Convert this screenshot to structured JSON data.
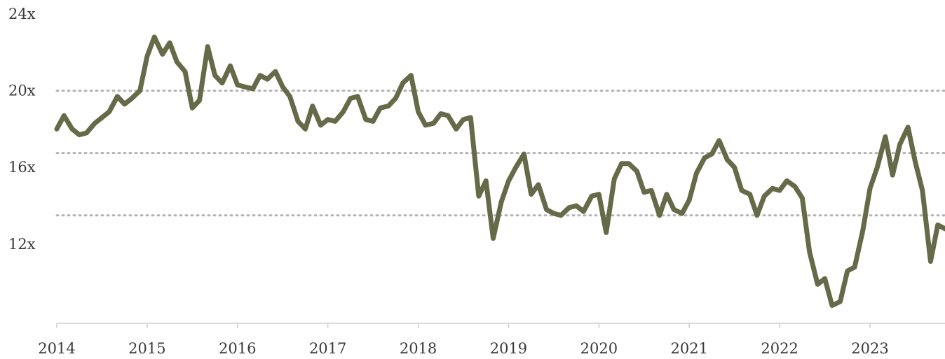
{
  "chart_data": {
    "type": "line",
    "title": "",
    "xlabel": "",
    "ylabel": "",
    "line_color": "#676a48",
    "grid": "dotted horizontal at 13.5x, 16.75x, 20x",
    "xlim": [
      2014.0,
      2023.83
    ],
    "ylim": [
      8.2,
      24.0
    ],
    "y_ticks": [
      {
        "value": 24,
        "label": "24x"
      },
      {
        "value": 20,
        "label": "20x"
      },
      {
        "value": 16,
        "label": "16x"
      },
      {
        "value": 12,
        "label": "12x"
      }
    ],
    "gridlines": [
      20,
      16.75,
      13.5
    ],
    "x_ticks": [
      {
        "value": 2014,
        "label": "2014"
      },
      {
        "value": 2015,
        "label": "2015"
      },
      {
        "value": 2016,
        "label": "2016"
      },
      {
        "value": 2017,
        "label": "2017"
      },
      {
        "value": 2018,
        "label": "2018"
      },
      {
        "value": 2019,
        "label": "2019"
      },
      {
        "value": 2020,
        "label": "2020"
      },
      {
        "value": 2021,
        "label": "2021"
      },
      {
        "value": 2022,
        "label": "2022"
      },
      {
        "value": 2023,
        "label": "2023"
      }
    ],
    "series": [
      {
        "x": [
          2014.0,
          2014.08,
          2014.17,
          2014.25,
          2014.33,
          2014.42,
          2014.5,
          2014.58,
          2014.67,
          2014.75,
          2014.83,
          2014.92,
          2015.0,
          2015.08,
          2015.17,
          2015.25,
          2015.33,
          2015.42,
          2015.5,
          2015.58,
          2015.67,
          2015.75,
          2015.83,
          2015.92,
          2016.0,
          2016.08,
          2016.17,
          2016.25,
          2016.33,
          2016.42,
          2016.5,
          2016.58,
          2016.67,
          2016.75,
          2016.83,
          2016.92,
          2017.0,
          2017.08,
          2017.17,
          2017.25,
          2017.33,
          2017.42,
          2017.5,
          2017.58,
          2017.67,
          2017.75,
          2017.83,
          2017.92,
          2018.0,
          2018.08,
          2018.17,
          2018.25,
          2018.33,
          2018.42,
          2018.5,
          2018.58,
          2018.67,
          2018.75,
          2018.83,
          2018.92,
          2019.0,
          2019.08,
          2019.17,
          2019.25,
          2019.33,
          2019.42,
          2019.5,
          2019.58,
          2019.67,
          2019.75,
          2019.83,
          2019.92,
          2020.0,
          2020.08,
          2020.17,
          2020.25,
          2020.33,
          2020.42,
          2020.5,
          2020.58,
          2020.67,
          2020.75,
          2020.83,
          2020.92,
          2021.0,
          2021.08,
          2021.17,
          2021.25,
          2021.33,
          2021.42,
          2021.5,
          2021.58,
          2021.67,
          2021.75,
          2021.83,
          2021.92,
          2022.0,
          2022.08,
          2022.17,
          2022.25,
          2022.33,
          2022.42,
          2022.5,
          2022.58,
          2022.67,
          2022.75,
          2022.83,
          2022.92,
          2023.0,
          2023.08,
          2023.17,
          2023.25,
          2023.33,
          2023.42,
          2023.5,
          2023.58,
          2023.67,
          2023.75,
          2023.83
        ],
        "y": [
          18.0,
          18.7,
          18.0,
          17.7,
          17.8,
          18.3,
          18.6,
          18.9,
          19.7,
          19.3,
          19.6,
          20.0,
          21.8,
          22.8,
          21.9,
          22.5,
          21.5,
          21.0,
          19.1,
          19.5,
          22.3,
          20.8,
          20.4,
          21.3,
          20.3,
          20.2,
          20.1,
          20.8,
          20.6,
          21.0,
          20.2,
          19.7,
          18.4,
          18.0,
          19.2,
          18.2,
          18.5,
          18.4,
          18.9,
          19.6,
          19.7,
          18.5,
          18.4,
          19.1,
          19.2,
          19.6,
          20.4,
          20.8,
          18.9,
          18.2,
          18.3,
          18.8,
          18.7,
          18.0,
          18.5,
          18.6,
          14.5,
          15.3,
          12.3,
          14.2,
          15.3,
          16.0,
          16.7,
          14.6,
          15.1,
          13.8,
          13.6,
          13.5,
          13.9,
          14.0,
          13.7,
          14.5,
          14.6,
          12.6,
          15.4,
          16.2,
          16.2,
          15.8,
          14.7,
          14.8,
          13.5,
          14.6,
          13.8,
          13.6,
          14.3,
          15.7,
          16.5,
          16.7,
          17.4,
          16.4,
          16.0,
          14.8,
          14.6,
          13.5,
          14.5,
          14.9,
          14.8,
          15.3,
          15.0,
          14.4,
          11.6,
          9.9,
          10.2,
          8.8,
          9.0,
          10.6,
          10.8,
          12.7,
          14.9,
          16.0,
          17.6,
          15.6,
          17.2,
          18.1,
          16.3,
          14.8,
          11.1,
          13.0,
          12.8
        ]
      }
    ]
  }
}
